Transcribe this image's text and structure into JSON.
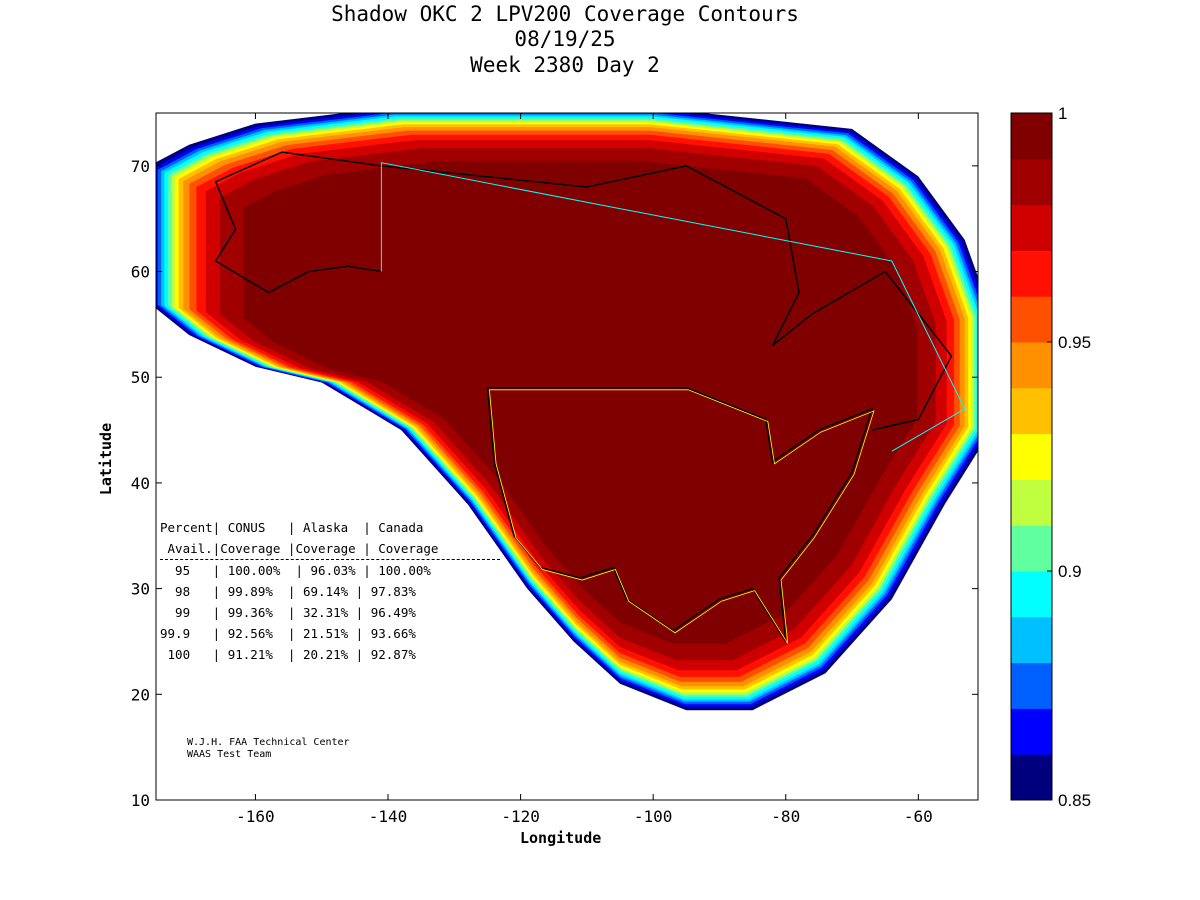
{
  "title": {
    "line1": "Shadow OKC 2 LPV200 Coverage Contours",
    "line2": "08/19/25",
    "line3": "Week 2380 Day 2"
  },
  "table": {
    "header1": "Percent| CONUS   | Alaska  | Canada",
    "header2": " Avail.|Coverage |Coverage | Coverage",
    "rows": [
      "  95   | 100.00%  | 96.03% | 100.00%",
      "  98   | 99.89%  | 69.14% | 97.83%",
      "  99   | 99.36%  | 32.31% | 96.49%",
      "99.9   | 92.56%  | 21.51% | 93.66%",
      " 100   | 91.21%  | 20.21% | 92.87%"
    ]
  },
  "credit": {
    "line1": "W.J.H. FAA Technical Center",
    "line2": "WAAS Test Team"
  },
  "chart_data": {
    "type": "heatmap",
    "title": "Shadow OKC 2 LPV200 Coverage Contours",
    "xlabel": "Longitude",
    "ylabel": "Latitude",
    "xlim": [
      -175,
      -51
    ],
    "ylim": [
      10,
      75
    ],
    "xticks": [
      -160,
      -140,
      -120,
      -100,
      -80,
      -60
    ],
    "yticks": [
      10,
      20,
      30,
      40,
      50,
      60,
      70
    ],
    "colorbar": {
      "range": [
        0.85,
        1
      ],
      "ticks": [
        0.85,
        0.9,
        0.95,
        1
      ],
      "tick_labels": [
        "0.85",
        "0.9",
        "0.95",
        "1"
      ]
    },
    "colormap": [
      "#00007f",
      "#0000ff",
      "#0060ff",
      "#00c0ff",
      "#00ffff",
      "#60ffa0",
      "#c0ff40",
      "#ffff00",
      "#ffc000",
      "#ff9000",
      "#ff5000",
      "#ff1000",
      "#d00000",
      "#a00000",
      "#800000"
    ],
    "coverage_table": {
      "columns": [
        "Percent Avail.",
        "CONUS Coverage",
        "Alaska Coverage",
        "Canada Coverage"
      ],
      "rows": [
        [
          95,
          "100.00%",
          "96.03%",
          "100.00%"
        ],
        [
          98,
          "99.89%",
          "69.14%",
          "97.83%"
        ],
        [
          99,
          "99.36%",
          "32.31%",
          "96.49%"
        ],
        [
          99.9,
          "92.56%",
          "21.51%",
          "93.66%"
        ],
        [
          100,
          "91.21%",
          "20.21%",
          "92.87%"
        ]
      ]
    }
  }
}
